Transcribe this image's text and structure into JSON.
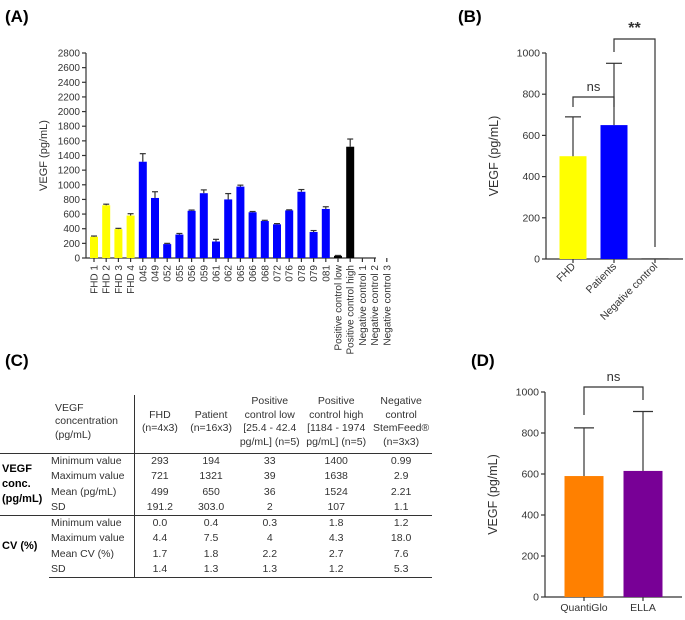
{
  "panels": {
    "a": "(A)",
    "b": "(B)",
    "c": "(C)",
    "d": "(D)"
  },
  "chart_data": [
    {
      "type": "bar",
      "panel": "A",
      "ylabel": "VEGF (pg/mL)",
      "ylim": [
        0,
        2800
      ],
      "yticks": [
        0,
        200,
        400,
        600,
        800,
        1000,
        1200,
        1400,
        1600,
        1800,
        2000,
        2200,
        2400,
        2600,
        2800
      ],
      "categories": [
        "FHD 1",
        "FHD 2",
        "FHD 3",
        "FHD 4",
        "045",
        "049",
        "052",
        "055",
        "056",
        "059",
        "061",
        "062",
        "065",
        "066",
        "068",
        "072",
        "076",
        "078",
        "079",
        "081",
        "Positive control low",
        "Positive control high",
        "Negative control 1",
        "Negative control 2",
        "Negative control 3"
      ],
      "values": [
        290,
        720,
        395,
        580,
        1315,
        820,
        190,
        320,
        645,
        885,
        225,
        800,
        975,
        625,
        505,
        460,
        650,
        905,
        355,
        670,
        30,
        1520,
        0,
        0,
        0
      ],
      "error_upper": [
        300,
        735,
        405,
        605,
        1425,
        905,
        200,
        335,
        655,
        930,
        255,
        880,
        995,
        635,
        515,
        470,
        658,
        935,
        375,
        700,
        35,
        1625,
        0,
        0,
        0
      ],
      "colors": [
        "#ffff00",
        "#ffff00",
        "#ffff00",
        "#ffff00",
        "#0000ff",
        "#0000ff",
        "#0000ff",
        "#0000ff",
        "#0000ff",
        "#0000ff",
        "#0000ff",
        "#0000ff",
        "#0000ff",
        "#0000ff",
        "#0000ff",
        "#0000ff",
        "#0000ff",
        "#0000ff",
        "#0000ff",
        "#0000ff",
        "#000000",
        "#000000",
        "#000000",
        "#000000",
        "#000000"
      ]
    },
    {
      "type": "bar",
      "panel": "B",
      "ylabel": "VEGF (pg/mL)",
      "ylim": [
        0,
        1000
      ],
      "yticks": [
        0,
        200,
        400,
        600,
        800,
        1000
      ],
      "categories": [
        "FHD",
        "Patients",
        "Negative control"
      ],
      "values": [
        499,
        650,
        2
      ],
      "error_upper": [
        690,
        950,
        2
      ],
      "colors": [
        "#ffff00",
        "#0000ff",
        "#000000"
      ],
      "annotations": [
        {
          "from": "FHD",
          "to": "Patients",
          "text": "ns"
        },
        {
          "from": "Patients",
          "to": "Negative control",
          "text": "**"
        }
      ]
    },
    {
      "type": "bar",
      "panel": "D",
      "ylabel": "VEGF (pg/mL)",
      "ylim": [
        0,
        1000
      ],
      "yticks": [
        0,
        200,
        400,
        600,
        800,
        1000
      ],
      "categories": [
        "QuantiGlo",
        "ELLA"
      ],
      "values": [
        590,
        615
      ],
      "error_upper": [
        825,
        905
      ],
      "colors": [
        "#ff8000",
        "#780096"
      ],
      "annotations": [
        {
          "from": "QuantiGlo",
          "to": "ELLA",
          "text": "ns"
        }
      ]
    }
  ],
  "table": {
    "header": [
      "VEGF concentration (pg/mL)",
      "FHD (n=4x3)",
      "Patient (n=16x3)",
      "Positive control low [25.4 - 42.4 pg/mL] (n=5)",
      "Positive control high [1184 - 1974 pg/mL] (n=5)",
      "Negative control StemFeed® (n=3x3)"
    ],
    "groups": [
      {
        "label": "VEGF conc. (pg/mL)",
        "rows": [
          [
            "Minimum value",
            "293",
            "194",
            "33",
            "1400",
            "0.99"
          ],
          [
            "Maximum value",
            "721",
            "1321",
            "39",
            "1638",
            "2.9"
          ],
          [
            "Mean (pg/mL)",
            "499",
            "650",
            "36",
            "1524",
            "2.21"
          ],
          [
            "SD",
            "191.2",
            "303.0",
            "2",
            "107",
            "1.1"
          ]
        ]
      },
      {
        "label": "CV (%)",
        "rows": [
          [
            "Minimum value",
            "0.0",
            "0.4",
            "0.3",
            "1.8",
            "1.2"
          ],
          [
            "Maximum value",
            "4.4",
            "7.5",
            "4",
            "4.3",
            "18.0"
          ],
          [
            "Mean CV (%)",
            "1.7",
            "1.8",
            "2.2",
            "2.7",
            "7.6"
          ],
          [
            "SD",
            "1.4",
            "1.3",
            "1.3",
            "1.2",
            "5.3"
          ]
        ]
      }
    ]
  }
}
